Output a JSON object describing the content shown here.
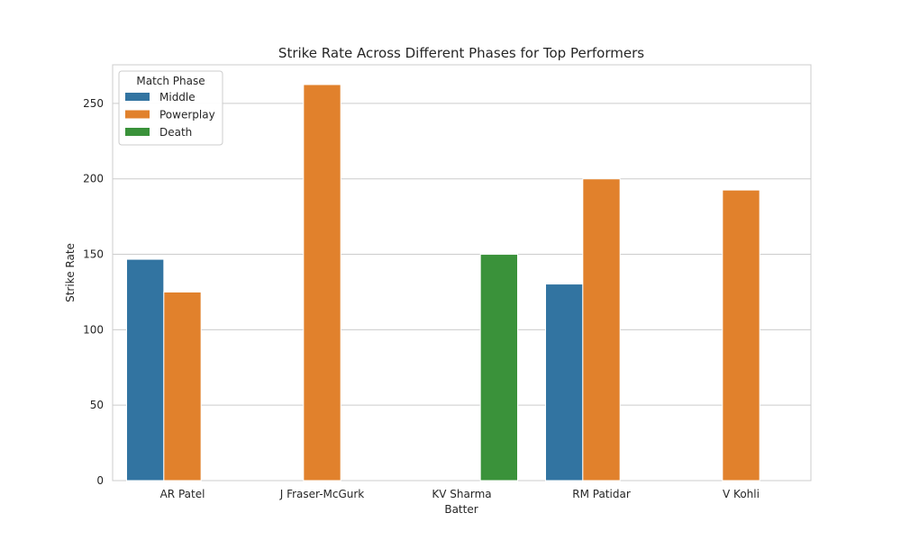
{
  "chart_data": {
    "type": "bar",
    "title": "Strike Rate Across Different Phases for Top Performers",
    "xlabel": "Batter",
    "ylabel": "Strike Rate",
    "categories": [
      "AR Patel",
      "J Fraser-McGurk",
      "KV Sharma",
      "RM Patidar",
      "V Kohli"
    ],
    "series": [
      {
        "name": "Middle",
        "color": "#3274a1",
        "values": [
          146.7,
          null,
          null,
          130.3,
          null
        ]
      },
      {
        "name": "Powerplay",
        "color": "#e1812c",
        "values": [
          125.0,
          262.5,
          null,
          200.0,
          192.6
        ]
      },
      {
        "name": "Death",
        "color": "#3a923a",
        "values": [
          null,
          null,
          150.0,
          null,
          null
        ]
      }
    ],
    "ylim": [
      0,
      275.6
    ],
    "yticks": [
      0,
      50,
      100,
      150,
      200,
      250
    ],
    "grid": true,
    "legend": {
      "title": "Match Phase",
      "placement": "top-left"
    }
  }
}
